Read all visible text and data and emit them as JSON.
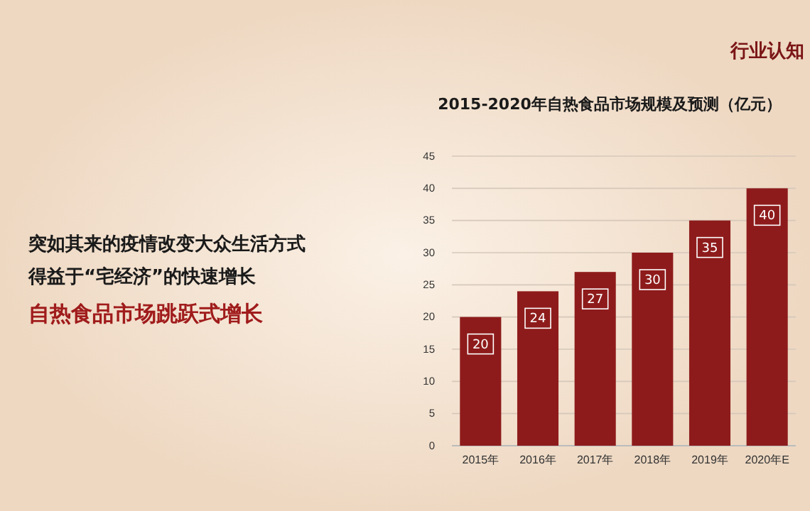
{
  "chart_data": {
    "type": "bar",
    "title": "2015-2020年自热食品市场规模及预测（亿元）",
    "categories": [
      "2015年",
      "2016年",
      "2017年",
      "2018年",
      "2019年",
      "2020年E"
    ],
    "values": [
      20,
      24,
      27,
      30,
      35,
      40
    ],
    "color": "#8e1b1b",
    "ylim": [
      0,
      45
    ],
    "yticks": [
      0,
      5,
      10,
      15,
      20,
      25,
      30,
      35,
      40,
      45
    ],
    "grid": "y",
    "data_labels": true,
    "annotations": [
      "行业认知",
      "突如其来的疫情改变大众生活方式",
      "得益于“宅经济”的快速增长",
      "自热食品市场跳跃式增长"
    ]
  }
}
